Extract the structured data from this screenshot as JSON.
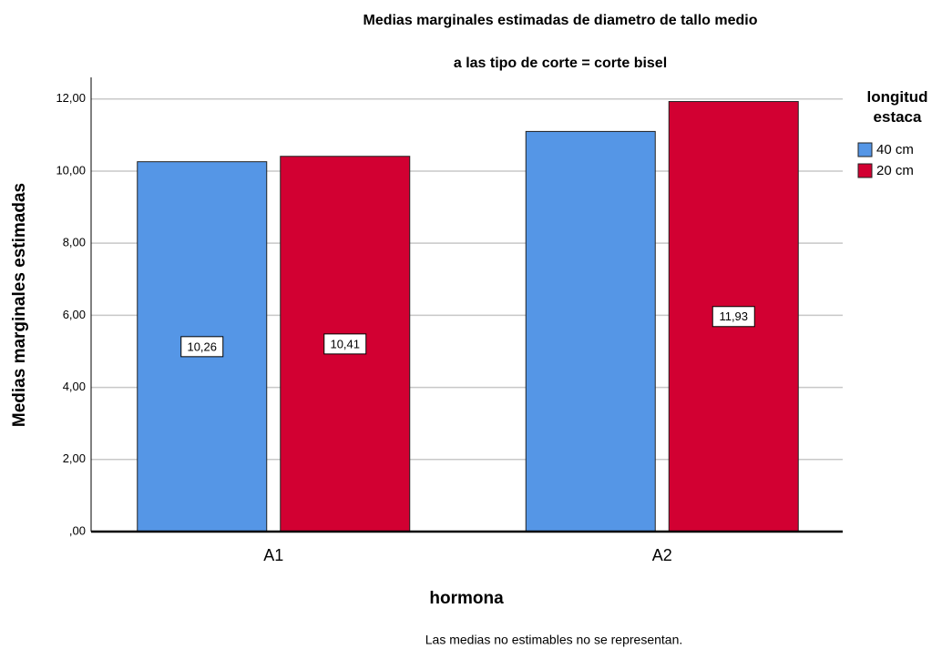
{
  "chart_data": {
    "type": "bar",
    "title": "Medias marginales estimadas de diametro de tallo medio",
    "subtitle": "a las tipo de corte = corte bisel",
    "x_label": "hormona",
    "y_label": "Medias marginales estimadas",
    "legend_title": "longitud estaca",
    "footnote": "Las medias no estimables no se representan.",
    "categories": [
      "A1",
      "A2"
    ],
    "series": [
      {
        "name": "40 cm",
        "color": "#5596e6",
        "values": [
          10.26,
          11.1
        ],
        "value_labels": [
          "10,26",
          null
        ]
      },
      {
        "name": "20 cm",
        "color": "#d20032",
        "values": [
          10.41,
          11.93
        ],
        "value_labels": [
          "10,41",
          "11,93"
        ]
      }
    ],
    "ylim": [
      0,
      12.6
    ],
    "yticks": [
      {
        "value": 0,
        "label": ",00"
      },
      {
        "value": 2,
        "label": "2,00"
      },
      {
        "value": 4,
        "label": "4,00"
      },
      {
        "value": 6,
        "label": "6,00"
      },
      {
        "value": 8,
        "label": "8,00"
      },
      {
        "value": 10,
        "label": "10,00"
      },
      {
        "value": 12,
        "label": "12,00"
      }
    ],
    "grid": true,
    "legend_position": "right"
  }
}
